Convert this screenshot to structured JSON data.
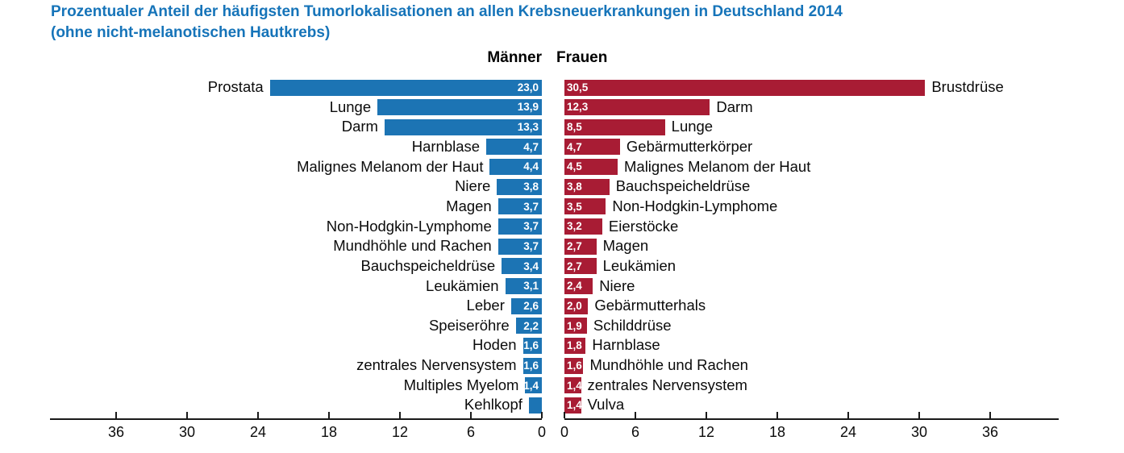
{
  "title": {
    "line1": "Prozentualer Anteil der häufigsten Tumorlokalisationen an allen Krebsneuerkrankungen in Deutschland 2014",
    "line2": "(ohne nicht-melanotischen Hautkrebs)"
  },
  "colors": {
    "men": "#1c74b4",
    "women": "#a81c34",
    "title": "#1674b9",
    "axis": "#1a1a1a",
    "value_text": "#ffffff"
  },
  "chart_data": {
    "type": "bar",
    "orientation": "horizontal_bilateral",
    "value_unit": "percent",
    "decimal_separator": ",",
    "axis": {
      "ticks": [
        0,
        6,
        12,
        18,
        24,
        30,
        36
      ],
      "max": 36,
      "tick_step": 6
    },
    "left_series": {
      "name": "Männer",
      "color": "#1c74b4",
      "items": [
        {
          "label": "Prostata",
          "value": 23.0,
          "value_label": "23,0"
        },
        {
          "label": "Lunge",
          "value": 13.9,
          "value_label": "13,9"
        },
        {
          "label": "Darm",
          "value": 13.3,
          "value_label": "13,3"
        },
        {
          "label": "Harnblase",
          "value": 4.7,
          "value_label": "4,7"
        },
        {
          "label": "Malignes Melanom der Haut",
          "value": 4.4,
          "value_label": "4,4"
        },
        {
          "label": "Niere",
          "value": 3.8,
          "value_label": "3,8"
        },
        {
          "label": "Magen",
          "value": 3.7,
          "value_label": "3,7"
        },
        {
          "label": "Non-Hodgkin-Lymphome",
          "value": 3.7,
          "value_label": "3,7"
        },
        {
          "label": "Mundhöhle und Rachen",
          "value": 3.7,
          "value_label": "3,7"
        },
        {
          "label": "Bauchspeicheldrüse",
          "value": 3.4,
          "value_label": "3,4"
        },
        {
          "label": "Leukämien",
          "value": 3.1,
          "value_label": "3,1"
        },
        {
          "label": "Leber",
          "value": 2.6,
          "value_label": "2,6"
        },
        {
          "label": "Speiseröhre",
          "value": 2.2,
          "value_label": "2,2"
        },
        {
          "label": "Hoden",
          "value": 1.6,
          "value_label": "1,6"
        },
        {
          "label": "zentrales Nervensystem",
          "value": 1.6,
          "value_label": "1,6"
        },
        {
          "label": "Multiples Myelom",
          "value": 1.4,
          "value_label": "1,4"
        },
        {
          "label": "Kehlkopf",
          "value": 1.1,
          "value_label": ""
        }
      ]
    },
    "right_series": {
      "name": "Frauen",
      "color": "#a81c34",
      "items": [
        {
          "label": "Brustdrüse",
          "value": 30.5,
          "value_label": "30,5"
        },
        {
          "label": "Darm",
          "value": 12.3,
          "value_label": "12,3"
        },
        {
          "label": "Lunge",
          "value": 8.5,
          "value_label": "8,5"
        },
        {
          "label": "Gebärmutterkörper",
          "value": 4.7,
          "value_label": "4,7"
        },
        {
          "label": "Malignes Melanom der Haut",
          "value": 4.5,
          "value_label": "4,5"
        },
        {
          "label": "Bauchspeicheldrüse",
          "value": 3.8,
          "value_label": "3,8"
        },
        {
          "label": "Non-Hodgkin-Lymphome",
          "value": 3.5,
          "value_label": "3,5"
        },
        {
          "label": "Eierstöcke",
          "value": 3.2,
          "value_label": "3,2"
        },
        {
          "label": "Magen",
          "value": 2.7,
          "value_label": "2,7"
        },
        {
          "label": "Leukämien",
          "value": 2.7,
          "value_label": "2,7"
        },
        {
          "label": "Niere",
          "value": 2.4,
          "value_label": "2,4"
        },
        {
          "label": "Gebärmutterhals",
          "value": 2.0,
          "value_label": "2,0"
        },
        {
          "label": "Schilddrüse",
          "value": 1.9,
          "value_label": "1,9"
        },
        {
          "label": "Harnblase",
          "value": 1.8,
          "value_label": "1,8"
        },
        {
          "label": "Mundhöhle und Rachen",
          "value": 1.6,
          "value_label": "1,6"
        },
        {
          "label": "zentrales Nervensystem",
          "value": 1.4,
          "value_label": "1,4"
        },
        {
          "label": "Vulva",
          "value": 1.4,
          "value_label": "1,4"
        }
      ]
    }
  }
}
